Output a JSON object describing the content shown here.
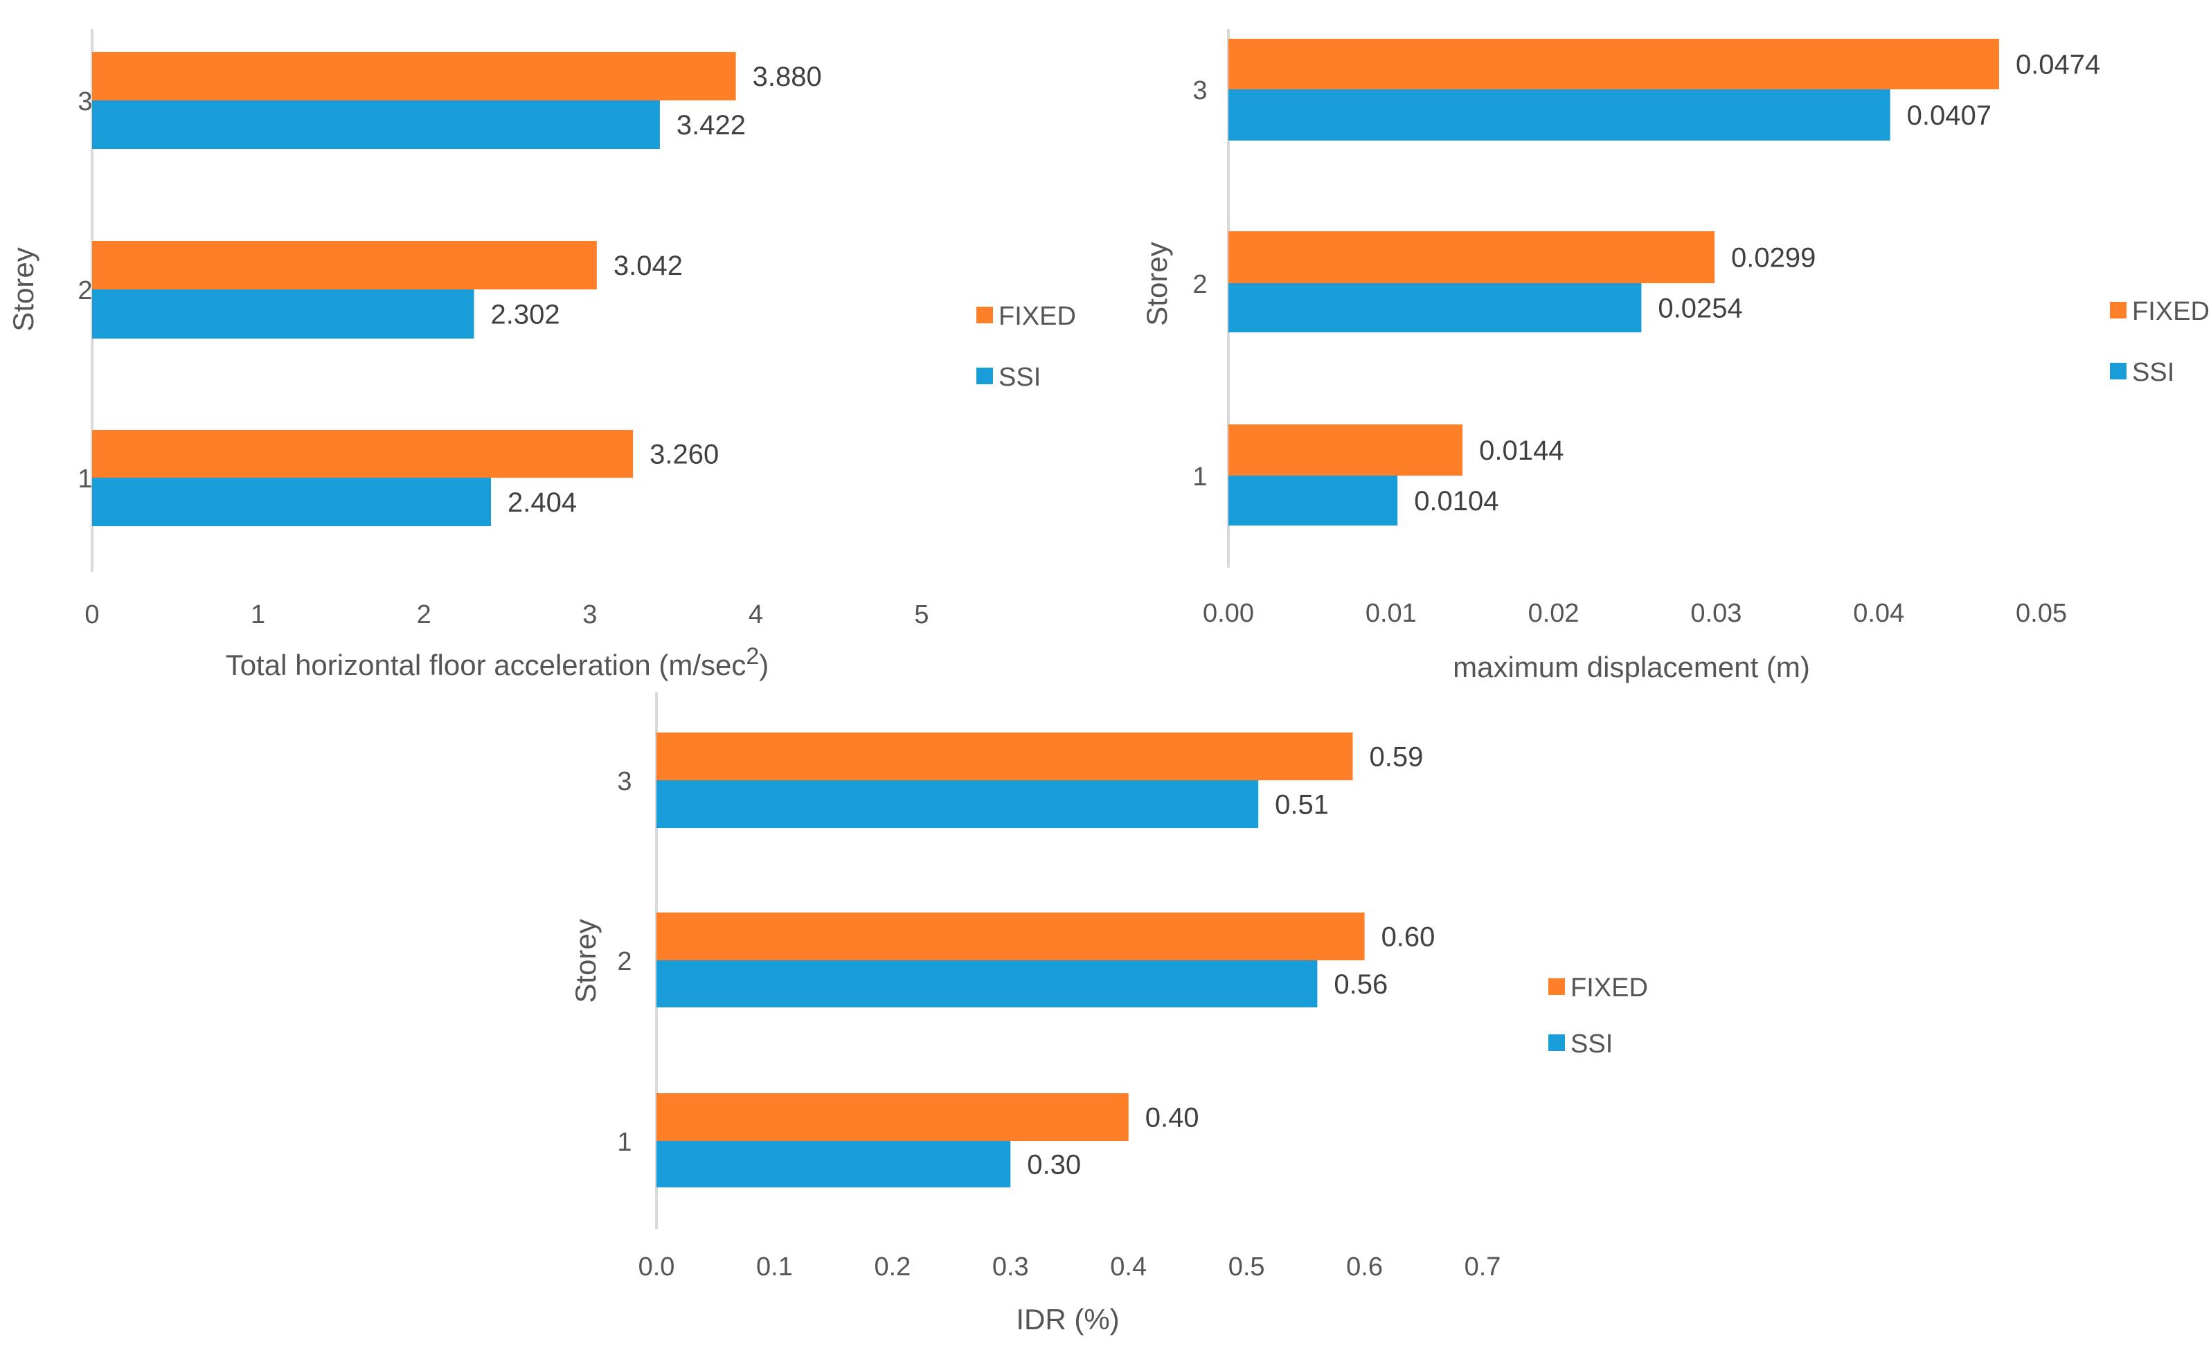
{
  "colors": {
    "fixed": "#fe7f27",
    "ssi": "#199dd9"
  },
  "chart_data": [
    {
      "type": "bar",
      "orientation": "horizontal",
      "title": "",
      "categories": [
        "1",
        "2",
        "3"
      ],
      "series": [
        {
          "name": "FIXED",
          "values": [
            3.26,
            3.042,
            3.88
          ],
          "labels": [
            "3.260",
            "3.042",
            "3.880"
          ]
        },
        {
          "name": "SSI",
          "values": [
            2.404,
            2.302,
            3.422
          ],
          "labels": [
            "2.404",
            "2.302",
            "3.422"
          ]
        }
      ],
      "xlabel": "Total horizontal floor acceleration (m/sec",
      "xlabel_superscript": "2",
      "xlabel_suffix": ")",
      "ylabel": "Storey",
      "xlim": [
        0,
        5
      ],
      "xticks": [
        "0",
        "1",
        "2",
        "3",
        "4",
        "5"
      ],
      "legend": [
        "FIXED",
        "SSI"
      ],
      "legend_position": "right",
      "grid": false
    },
    {
      "type": "bar",
      "orientation": "horizontal",
      "title": "",
      "categories": [
        "1",
        "2",
        "3"
      ],
      "series": [
        {
          "name": "FIXED",
          "values": [
            0.0144,
            0.0299,
            0.0474
          ],
          "labels": [
            "0.0144",
            "0.0299",
            "0.0474"
          ]
        },
        {
          "name": "SSI",
          "values": [
            0.0104,
            0.0254,
            0.0407
          ],
          "labels": [
            "0.0104",
            "0.0254",
            "0.0407"
          ]
        }
      ],
      "xlabel": "maximum displacement (m)",
      "ylabel": "Storey",
      "xlim": [
        0,
        0.05
      ],
      "xticks": [
        "0.00",
        "0.01",
        "0.02",
        "0.03",
        "0.04",
        "0.05"
      ],
      "legend": [
        "FIXED",
        "SSI"
      ],
      "legend_position": "right",
      "grid": false
    },
    {
      "type": "bar",
      "orientation": "horizontal",
      "title": "",
      "categories": [
        "1",
        "2",
        "3"
      ],
      "series": [
        {
          "name": "FIXED",
          "values": [
            0.4,
            0.6,
            0.59
          ],
          "labels": [
            "0.40",
            "0.60",
            "0.59"
          ]
        },
        {
          "name": "SSI",
          "values": [
            0.3,
            0.56,
            0.51
          ],
          "labels": [
            "0.30",
            "0.56",
            "0.51"
          ]
        }
      ],
      "xlabel": "IDR (%)",
      "ylabel": "Storey",
      "xlim": [
        0,
        0.7
      ],
      "xticks": [
        "0.0",
        "0.1",
        "0.2",
        "0.3",
        "0.4",
        "0.5",
        "0.6",
        "0.7"
      ],
      "legend": [
        "FIXED",
        "SSI"
      ],
      "legend_position": "right",
      "grid": false
    }
  ]
}
